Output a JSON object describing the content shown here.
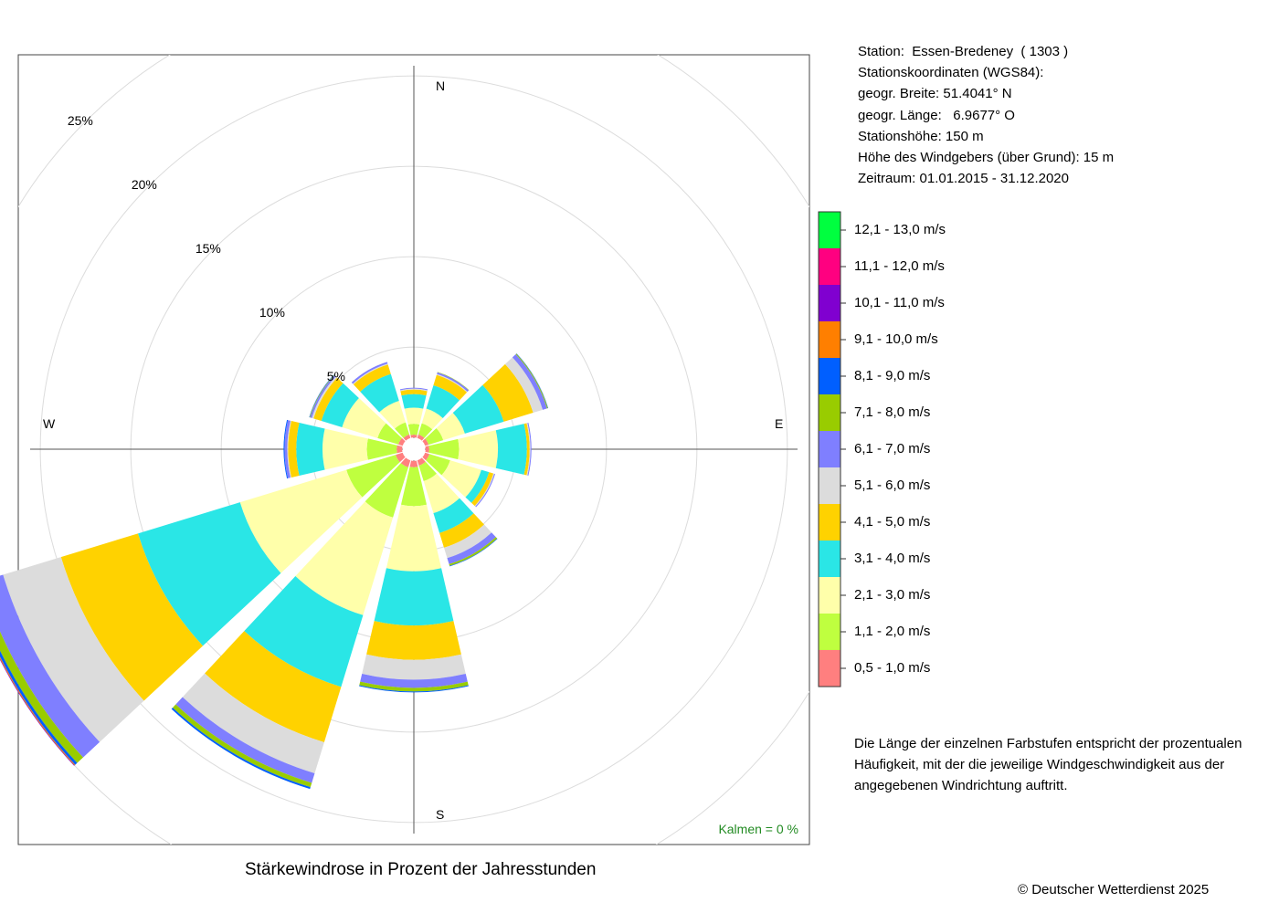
{
  "station": {
    "lines": [
      "Station:  Essen-Bredeney  ( 1303 )",
      "Stationskoordinaten (WGS84):",
      "geogr. Breite: 51.4041° N",
      "geogr. Länge:   6.9677° O",
      "Stationshöhe: 150 m",
      "Höhe des Windgebers (über Grund): 15 m",
      "Zeitraum: 01.01.2015 - 31.12.2020"
    ]
  },
  "legend": {
    "bins": [
      {
        "label": "0,5 - 1,0 m/s",
        "color": "#FF7F7F"
      },
      {
        "label": "1,1 - 2,0 m/s",
        "color": "#BFFF3F"
      },
      {
        "label": "2,1 - 3,0 m/s",
        "color": "#FFFFAA"
      },
      {
        "label": "3,1 - 4,0 m/s",
        "color": "#2AE6E6"
      },
      {
        "label": "4,1 - 5,0 m/s",
        "color": "#FFD200"
      },
      {
        "label": "5,1 - 6,0 m/s",
        "color": "#DCDCDC"
      },
      {
        "label": "6,1 - 7,0 m/s",
        "color": "#7F7FFF"
      },
      {
        "label": "7,1 - 8,0 m/s",
        "color": "#99CC00"
      },
      {
        "label": "8,1 - 9,0 m/s",
        "color": "#005FFF"
      },
      {
        "label": "9,1 - 10,0 m/s",
        "color": "#FF7F00"
      },
      {
        "label": "10,1 - 11,0 m/s",
        "color": "#8000D0"
      },
      {
        "label": "11,1 - 12,0 m/s",
        "color": "#FF0080"
      },
      {
        "label": "12,1 - 13,0 m/s",
        "color": "#00FF3F"
      }
    ]
  },
  "description": "Die Länge der einzelnen Farbstufen entspricht der prozentualen Häufigkeit, mit der die jeweilige Windgeschwindigkeit aus der angegebenen Windrichtung auftritt.",
  "title": "Stärkewindrose in Prozent der Jahresstunden",
  "calm": "Kalmen  =  0 %",
  "copyright": "© Deutscher Wetterdienst  2025",
  "compass": {
    "n": "N",
    "e": "E",
    "s": "S",
    "w": "W"
  },
  "ring_labels": [
    "5%",
    "10%",
    "15%",
    "20%",
    "25%"
  ],
  "chart_data": {
    "type": "windrose",
    "unit": "% der Jahresstunden",
    "ring_values": [
      5,
      10,
      15,
      20,
      25
    ],
    "calm_percent": 0,
    "directions_deg": [
      0,
      30,
      60,
      90,
      120,
      150,
      180,
      210,
      240,
      270,
      300,
      330
    ],
    "inner_offset_percent": 0.65,
    "bin_values": [
      [
        0.15,
        0.6,
        0.9,
        0.75,
        0.25,
        0.05,
        0.05,
        0,
        0,
        0,
        0,
        0,
        0
      ],
      [
        0.2,
        0.65,
        0.85,
        1.35,
        0.6,
        0.05,
        0.1,
        0.02,
        0,
        0,
        0,
        0,
        0
      ],
      [
        0.2,
        0.85,
        1.25,
        2.25,
        1.7,
        0.55,
        0.25,
        0.05,
        0.02,
        0,
        0,
        0,
        0
      ],
      [
        0.2,
        1.65,
        2.15,
        1.6,
        0.15,
        0.05,
        0.05,
        0,
        0,
        0,
        0,
        0,
        0
      ],
      [
        0.25,
        1.2,
        1.8,
        0.45,
        0.25,
        0.05,
        0.05,
        0,
        0,
        0,
        0,
        0,
        0
      ],
      [
        0.3,
        0.9,
        1.85,
        1.15,
        0.85,
        0.6,
        0.35,
        0.1,
        0.03,
        0,
        0,
        0,
        0
      ],
      [
        0.35,
        2.15,
        3.6,
        3.0,
        1.9,
        1.1,
        0.45,
        0.2,
        0.05,
        0,
        0,
        0,
        0
      ],
      [
        0.4,
        2.9,
        5.65,
        4.15,
        3.2,
        1.8,
        0.55,
        0.25,
        0.1,
        0,
        0,
        0,
        0
      ],
      [
        0.4,
        2.85,
        6.15,
        5.9,
        4.45,
        3.35,
        1.25,
        0.45,
        0.15,
        0.05,
        0.03,
        0,
        0
      ],
      [
        0.3,
        1.65,
        2.45,
        1.45,
        0.45,
        0.05,
        0.15,
        0,
        0.05,
        0,
        0,
        0,
        0
      ],
      [
        0.25,
        1.2,
        2.05,
        1.2,
        0.45,
        0.1,
        0.1,
        0.03,
        0.02,
        0,
        0,
        0,
        0
      ],
      [
        0.2,
        0.7,
        1.25,
        1.55,
        0.55,
        0.05,
        0.1,
        0,
        0,
        0,
        0,
        0,
        0
      ]
    ]
  }
}
